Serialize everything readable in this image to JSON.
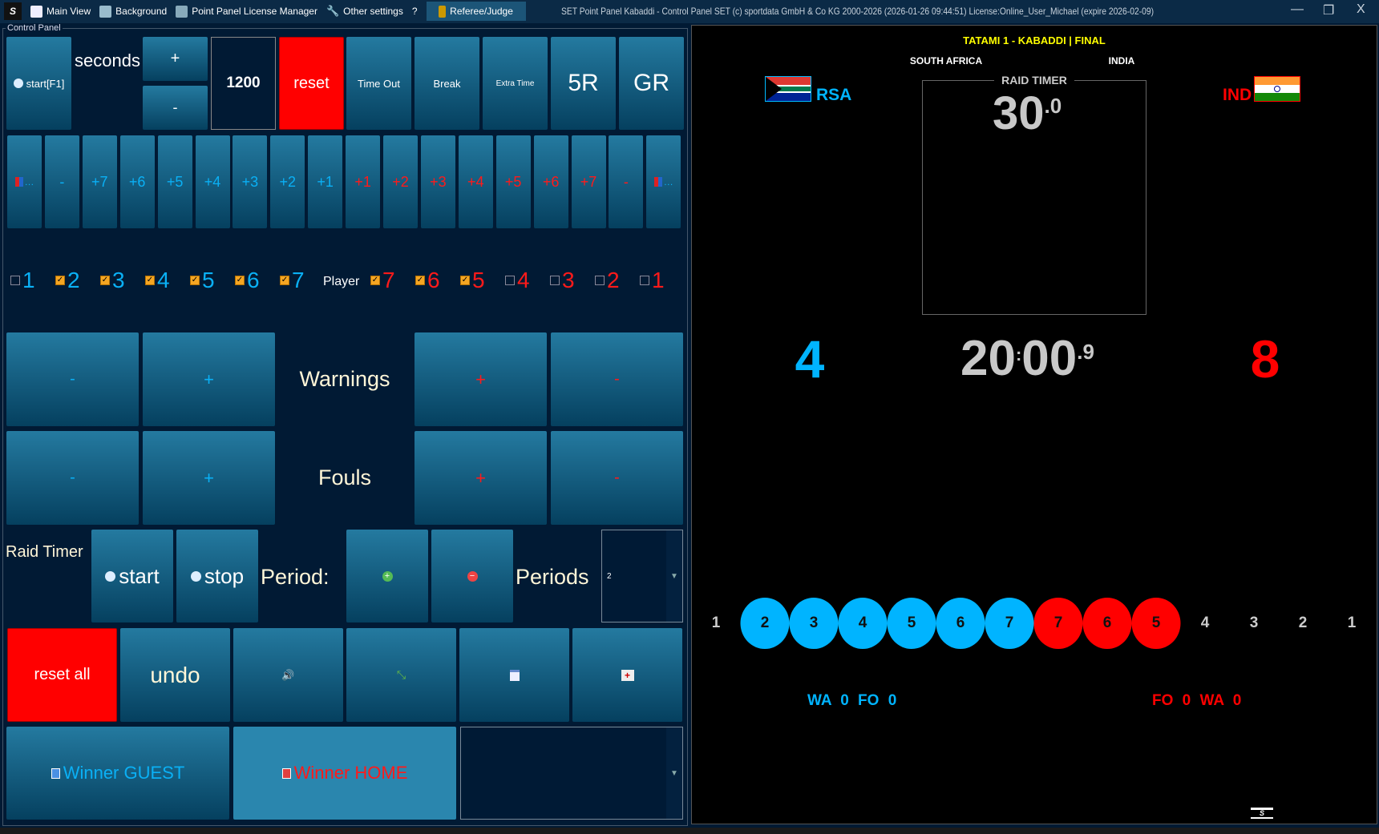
{
  "menu": {
    "logo": "S",
    "items": [
      {
        "label": "Main View",
        "icon": "window-icon"
      },
      {
        "label": "Background",
        "icon": "paint-icon"
      },
      {
        "label": "Point Panel License Manager",
        "icon": "license-icon"
      },
      {
        "label": "Other settings",
        "icon": "wrench-icon"
      },
      {
        "label": "?",
        "icon": ""
      }
    ],
    "referee": "Referee/Judge"
  },
  "window": {
    "title": "SET Point Panel Kabaddi - Control Panel SET (c) sportdata GmbH & Co KG 2000-2026 (2026-01-26 09:44:51) License:Online_User_Michael (expire 2026-02-09)",
    "minimize": "—",
    "restore": "❐",
    "close": "X"
  },
  "control": {
    "group_label": "Control Panel",
    "start": "start[F1]",
    "seconds": "seconds",
    "plus": "+",
    "minus": "-",
    "time_value": "1200",
    "reset": "reset",
    "row1": [
      "Time Out",
      "Break",
      "Extra Time",
      "5R",
      "GR"
    ],
    "points_guest": [
      "…",
      "-",
      "+7",
      "+6",
      "+5",
      "+4",
      "+3",
      "+2",
      "+1"
    ],
    "points_home": [
      "+1",
      "+2",
      "+3",
      "+4",
      "+5",
      "+6",
      "+7",
      "-",
      "…"
    ],
    "player_label": "Player",
    "players_guest": [
      {
        "n": "1",
        "checked": false
      },
      {
        "n": "2",
        "checked": true
      },
      {
        "n": "3",
        "checked": true
      },
      {
        "n": "4",
        "checked": true
      },
      {
        "n": "5",
        "checked": true
      },
      {
        "n": "6",
        "checked": true
      },
      {
        "n": "7",
        "checked": true
      }
    ],
    "players_home": [
      {
        "n": "7",
        "checked": true
      },
      {
        "n": "6",
        "checked": true
      },
      {
        "n": "5",
        "checked": true
      },
      {
        "n": "4",
        "checked": false
      },
      {
        "n": "3",
        "checked": false
      },
      {
        "n": "2",
        "checked": false
      },
      {
        "n": "1",
        "checked": false
      }
    ],
    "warnings": "Warnings",
    "fouls": "Fouls",
    "raid_timer": "Raid Timer",
    "raid_start": "start",
    "raid_stop": "stop",
    "period": "Period:",
    "periods": "Periods",
    "periods_value": "2",
    "reset_all": "reset all",
    "undo": "undo",
    "winner_guest": "Winner GUEST",
    "winner_home": "Winner HOME"
  },
  "board": {
    "title": "TATAMI 1 - KABADDI | FINAL",
    "guest_name": "SOUTH AFRICA",
    "home_name": "INDIA",
    "guest_code": "RSA",
    "home_code": "IND",
    "raid_label": "RAID TIMER",
    "raid_main": "30",
    "raid_frac": ".0",
    "guest_score": "4",
    "home_score": "8",
    "clock_min": "20",
    "clock_sep": ":",
    "clock_sec": "00",
    "clock_frac": ".9",
    "players": [
      {
        "n": "1",
        "state": "out"
      },
      {
        "n": "2",
        "state": "guest"
      },
      {
        "n": "3",
        "state": "guest"
      },
      {
        "n": "4",
        "state": "guest"
      },
      {
        "n": "5",
        "state": "guest"
      },
      {
        "n": "6",
        "state": "guest"
      },
      {
        "n": "7",
        "state": "guest"
      },
      {
        "n": "7",
        "state": "home"
      },
      {
        "n": "6",
        "state": "home"
      },
      {
        "n": "5",
        "state": "home"
      },
      {
        "n": "4",
        "state": "out"
      },
      {
        "n": "3",
        "state": "out"
      },
      {
        "n": "2",
        "state": "out"
      },
      {
        "n": "1",
        "state": "out"
      }
    ],
    "guest_stats": {
      "wa": "WA",
      "wa_v": "0",
      "fo": "FO",
      "fo_v": "0"
    },
    "home_stats": {
      "fo": "FO",
      "fo_v": "0",
      "wa": "WA",
      "wa_v": "0"
    },
    "colors": {
      "guest": "#00b4ff",
      "home": "#ff0000",
      "title": "#ffff00"
    }
  }
}
